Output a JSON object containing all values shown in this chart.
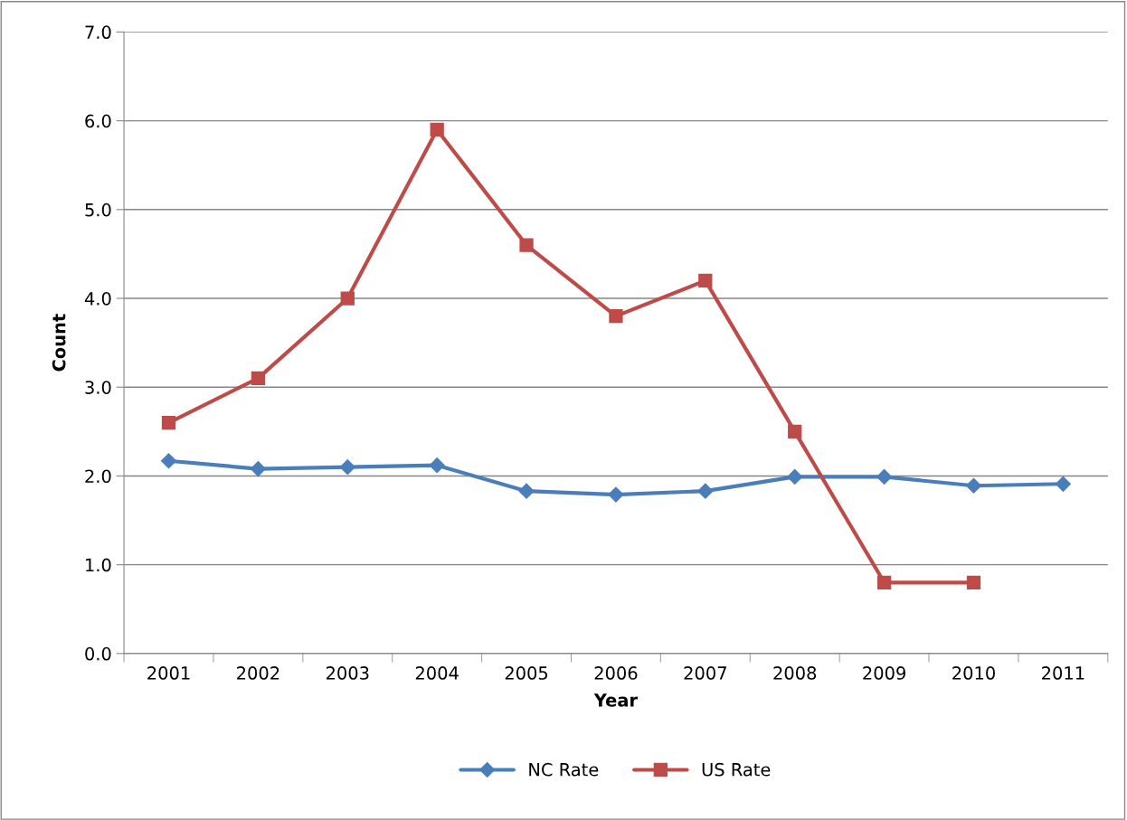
{
  "chart_data": {
    "type": "line",
    "xlabel": "Year",
    "ylabel": "Count",
    "categories": [
      "2001",
      "2002",
      "2003",
      "2004",
      "2005",
      "2006",
      "2007",
      "2008",
      "2009",
      "2010",
      "2011"
    ],
    "series": [
      {
        "name": "NC Rate",
        "color": "#4a7ebb",
        "marker": "diamond",
        "values": [
          2.17,
          2.08,
          2.1,
          2.12,
          1.83,
          1.79,
          1.83,
          1.99,
          1.99,
          1.89,
          1.91
        ]
      },
      {
        "name": "US Rate",
        "color": "#be4b48",
        "marker": "square",
        "values": [
          2.6,
          3.1,
          4.0,
          5.9,
          4.6,
          3.8,
          4.2,
          2.5,
          0.8,
          0.8,
          null
        ]
      }
    ],
    "ylim": [
      0,
      7
    ],
    "yticks": [
      {
        "value": 0,
        "label": "0.0"
      },
      {
        "value": 1,
        "label": "1.0"
      },
      {
        "value": 2,
        "label": "2.0"
      },
      {
        "value": 3,
        "label": "3.0"
      },
      {
        "value": 4,
        "label": "4.0"
      },
      {
        "value": 5,
        "label": "5.0"
      },
      {
        "value": 6,
        "label": "6.0"
      },
      {
        "value": 7,
        "label": "7.0"
      }
    ],
    "grid": "y",
    "legend": "bottom",
    "line_style": "solid"
  }
}
